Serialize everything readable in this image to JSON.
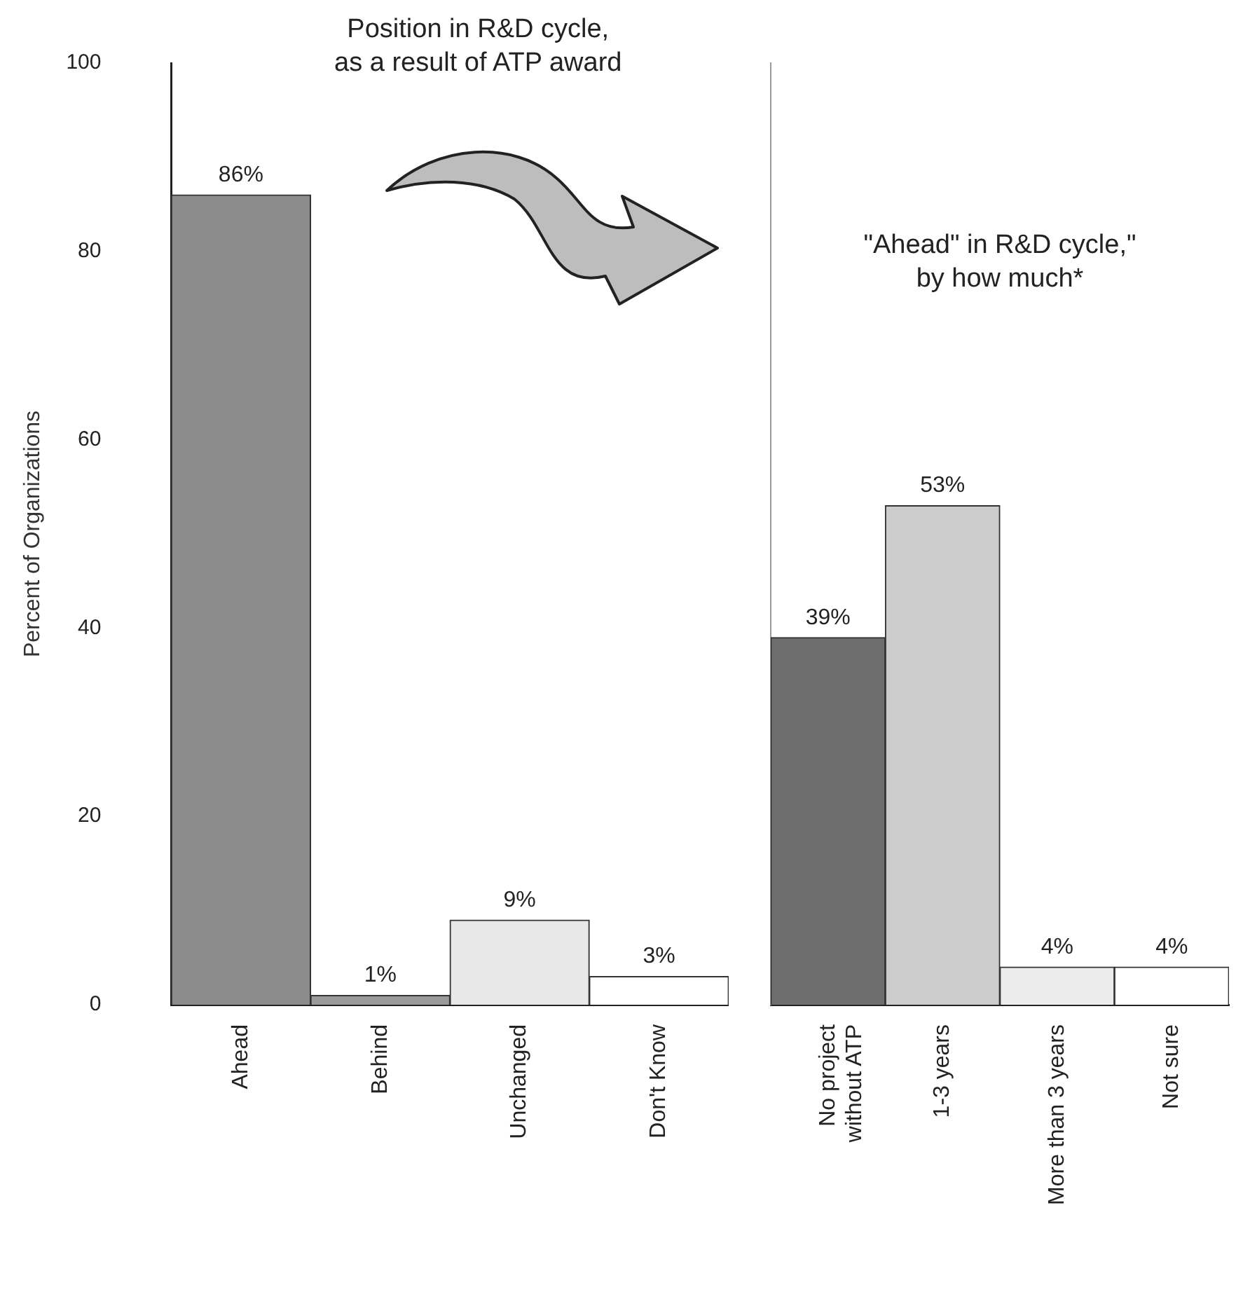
{
  "chart_data": [
    {
      "type": "bar",
      "title": "Position in R&D cycle,\nas a result of ATP award",
      "ylabel": "Percent of Organizations",
      "categories": [
        "Ahead",
        "Behind",
        "Unchanged",
        "Don't Know"
      ],
      "values": [
        86,
        1,
        9,
        3
      ],
      "colors": [
        "#8c8c8c",
        "#9a9a9a",
        "#e8e8e8",
        "#ffffff"
      ],
      "value_labels": [
        "86%",
        "1%",
        "9%",
        "3%"
      ],
      "ylim": [
        0,
        100
      ],
      "yticks": [
        0,
        20,
        40,
        60,
        80,
        100
      ],
      "grid": false,
      "legend": false
    },
    {
      "type": "bar",
      "title": "\"Ahead\" in R&D cycle,\"\nby how much*",
      "categories": [
        "No project\nwithout ATP",
        "1-3 years",
        "More than 3 years",
        "Not sure"
      ],
      "values": [
        39,
        53,
        4,
        4
      ],
      "colors": [
        "#6e6e6e",
        "#cccccc",
        "#ececec",
        "#ffffff"
      ],
      "value_labels": [
        "39%",
        "53%",
        "4%",
        "4%"
      ],
      "ylim": [
        0,
        100
      ],
      "tick_labels": "x",
      "grid": false,
      "legend": false
    }
  ]
}
